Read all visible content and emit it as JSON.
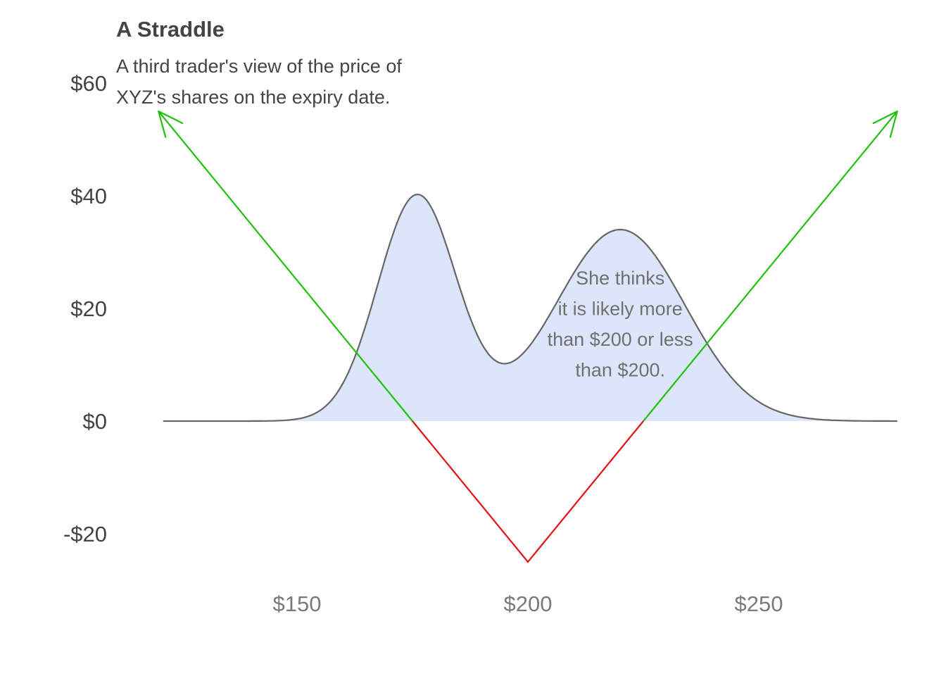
{
  "chart_data": {
    "type": "line",
    "title": "A Straddle",
    "subtitle": "A third trader's view of the price of XYZ's shares on the expiry date.",
    "xlabel": "",
    "ylabel": "",
    "xlim": [
      120,
      280
    ],
    "ylim": [
      -30,
      62
    ],
    "x_ticks": [
      {
        "value": 150,
        "label": "$150"
      },
      {
        "value": 200,
        "label": "$200"
      },
      {
        "value": 250,
        "label": "$250"
      }
    ],
    "y_ticks": [
      {
        "value": 60,
        "label": "$60"
      },
      {
        "value": 40,
        "label": "$40"
      },
      {
        "value": 20,
        "label": "$20"
      },
      {
        "value": 0,
        "label": "$0"
      },
      {
        "value": -20,
        "label": "-$20"
      }
    ],
    "grid": false,
    "series": [
      {
        "kind": "density",
        "color": "#666666",
        "fill": "#dce5fa",
        "components": [
          {
            "mean": 176,
            "sd": 8.5,
            "peak": 40
          },
          {
            "mean": 220,
            "sd": 14,
            "peak": 34
          }
        ],
        "x_range": [
          121,
          280
        ]
      },
      {
        "kind": "payoff",
        "strike": 200,
        "premium": 25,
        "x": [
          120,
          200,
          280
        ],
        "y": [
          55,
          -25,
          55
        ],
        "profit_color": "#22c010",
        "loss_color": "#e81010"
      }
    ],
    "annotations": [
      {
        "text": [
          "She thinks",
          "it is likely more",
          "than $200 or less",
          "than $200."
        ],
        "x": 220,
        "y": 25.5
      }
    ]
  }
}
